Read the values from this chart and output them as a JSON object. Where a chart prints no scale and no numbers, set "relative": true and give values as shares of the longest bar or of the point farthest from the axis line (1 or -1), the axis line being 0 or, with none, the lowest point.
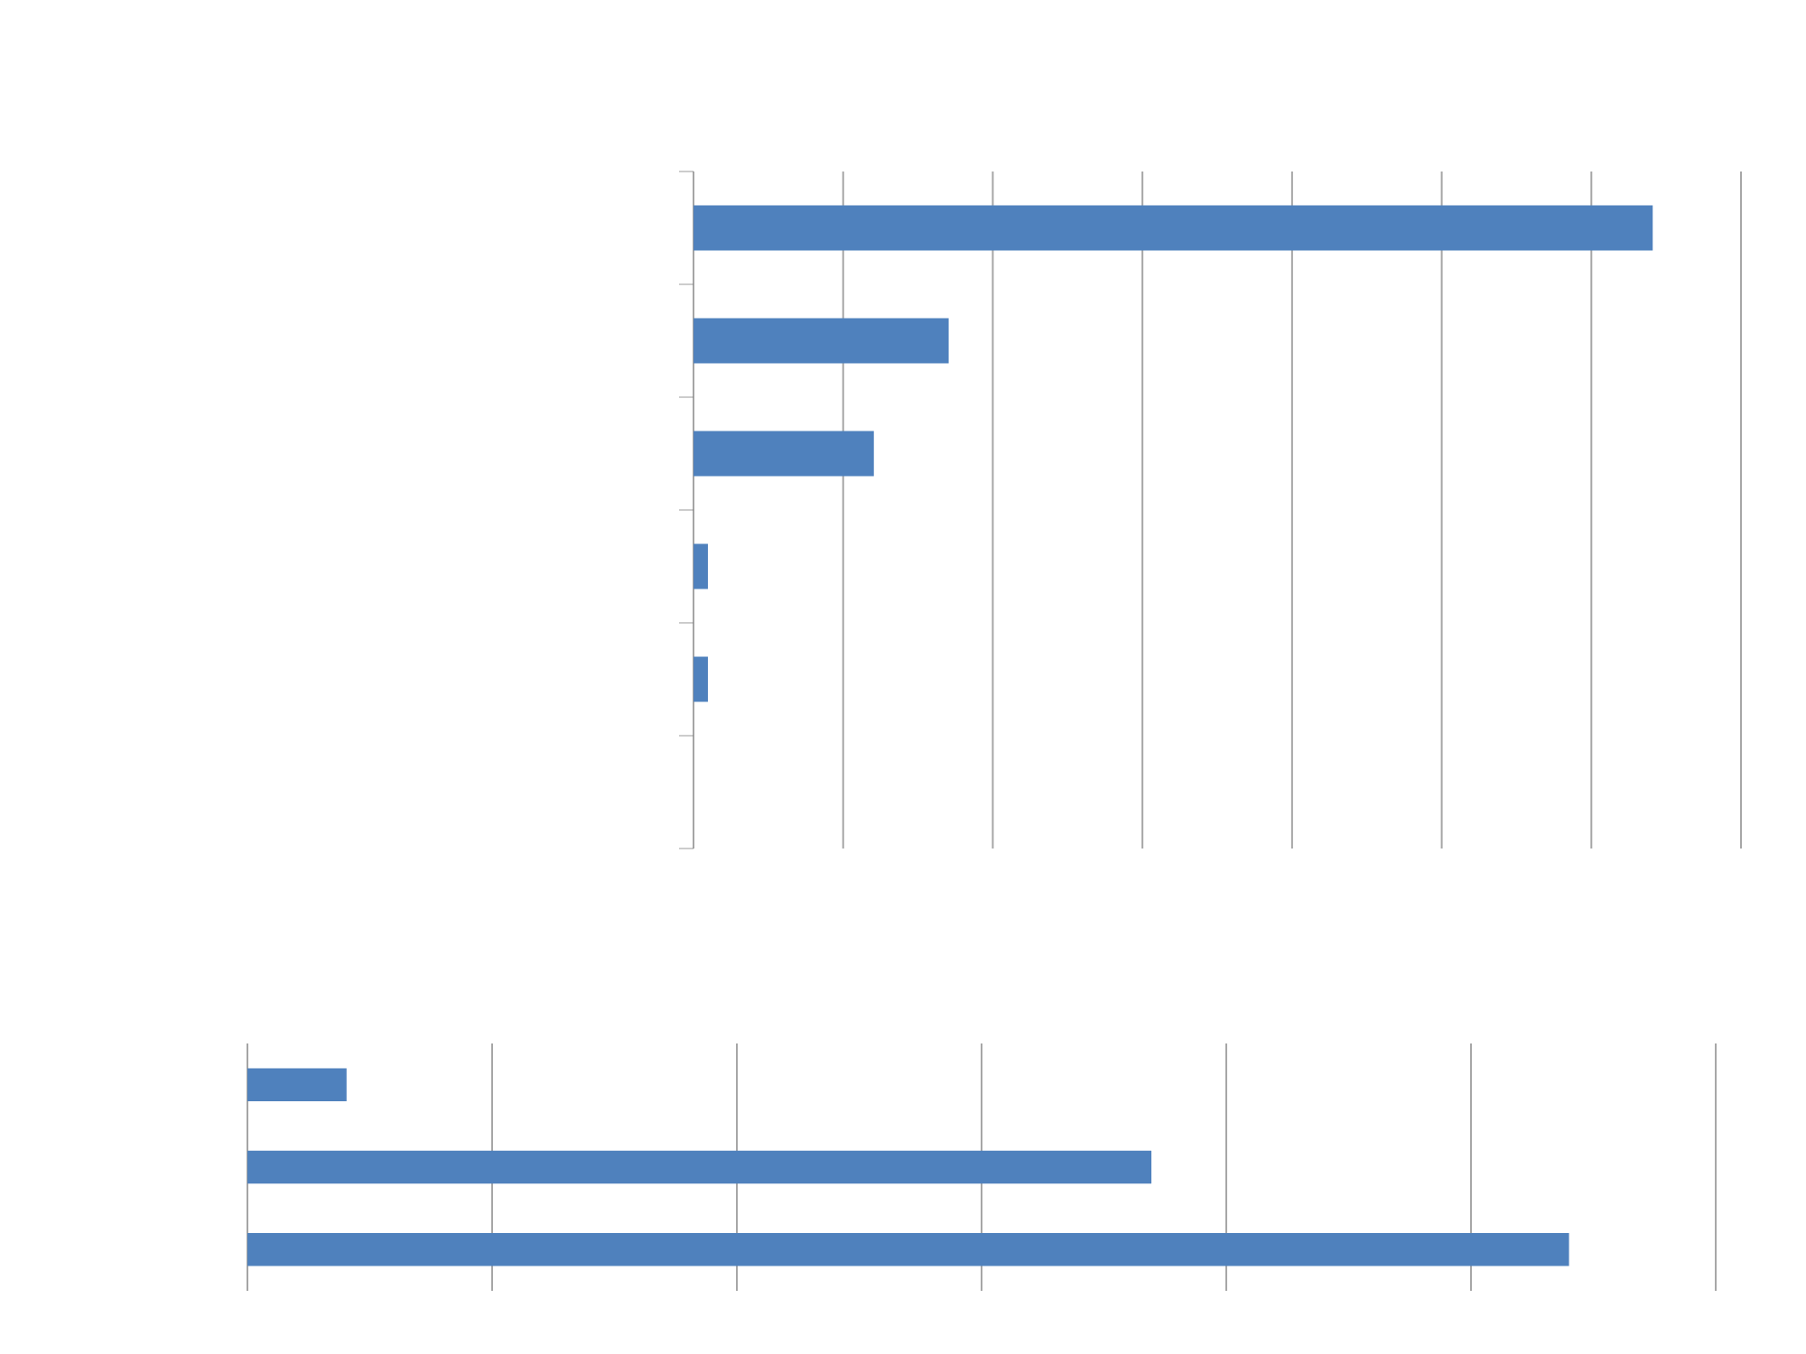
{
  "chart_data": [
    {
      "type": "bar",
      "orientation": "horizontal",
      "relative": true,
      "categories": [
        null,
        null,
        null,
        null,
        null
      ],
      "values": [
        1,
        0.266,
        0.188,
        0.015,
        0.015
      ],
      "color": "#4f81bd",
      "grid": "x"
    },
    {
      "type": "bar",
      "orientation": "horizontal",
      "relative": true,
      "categories": [
        null,
        null,
        null
      ],
      "values": [
        0.075,
        0.684,
        1
      ],
      "color": "#4f81bd",
      "grid": "x"
    }
  ]
}
